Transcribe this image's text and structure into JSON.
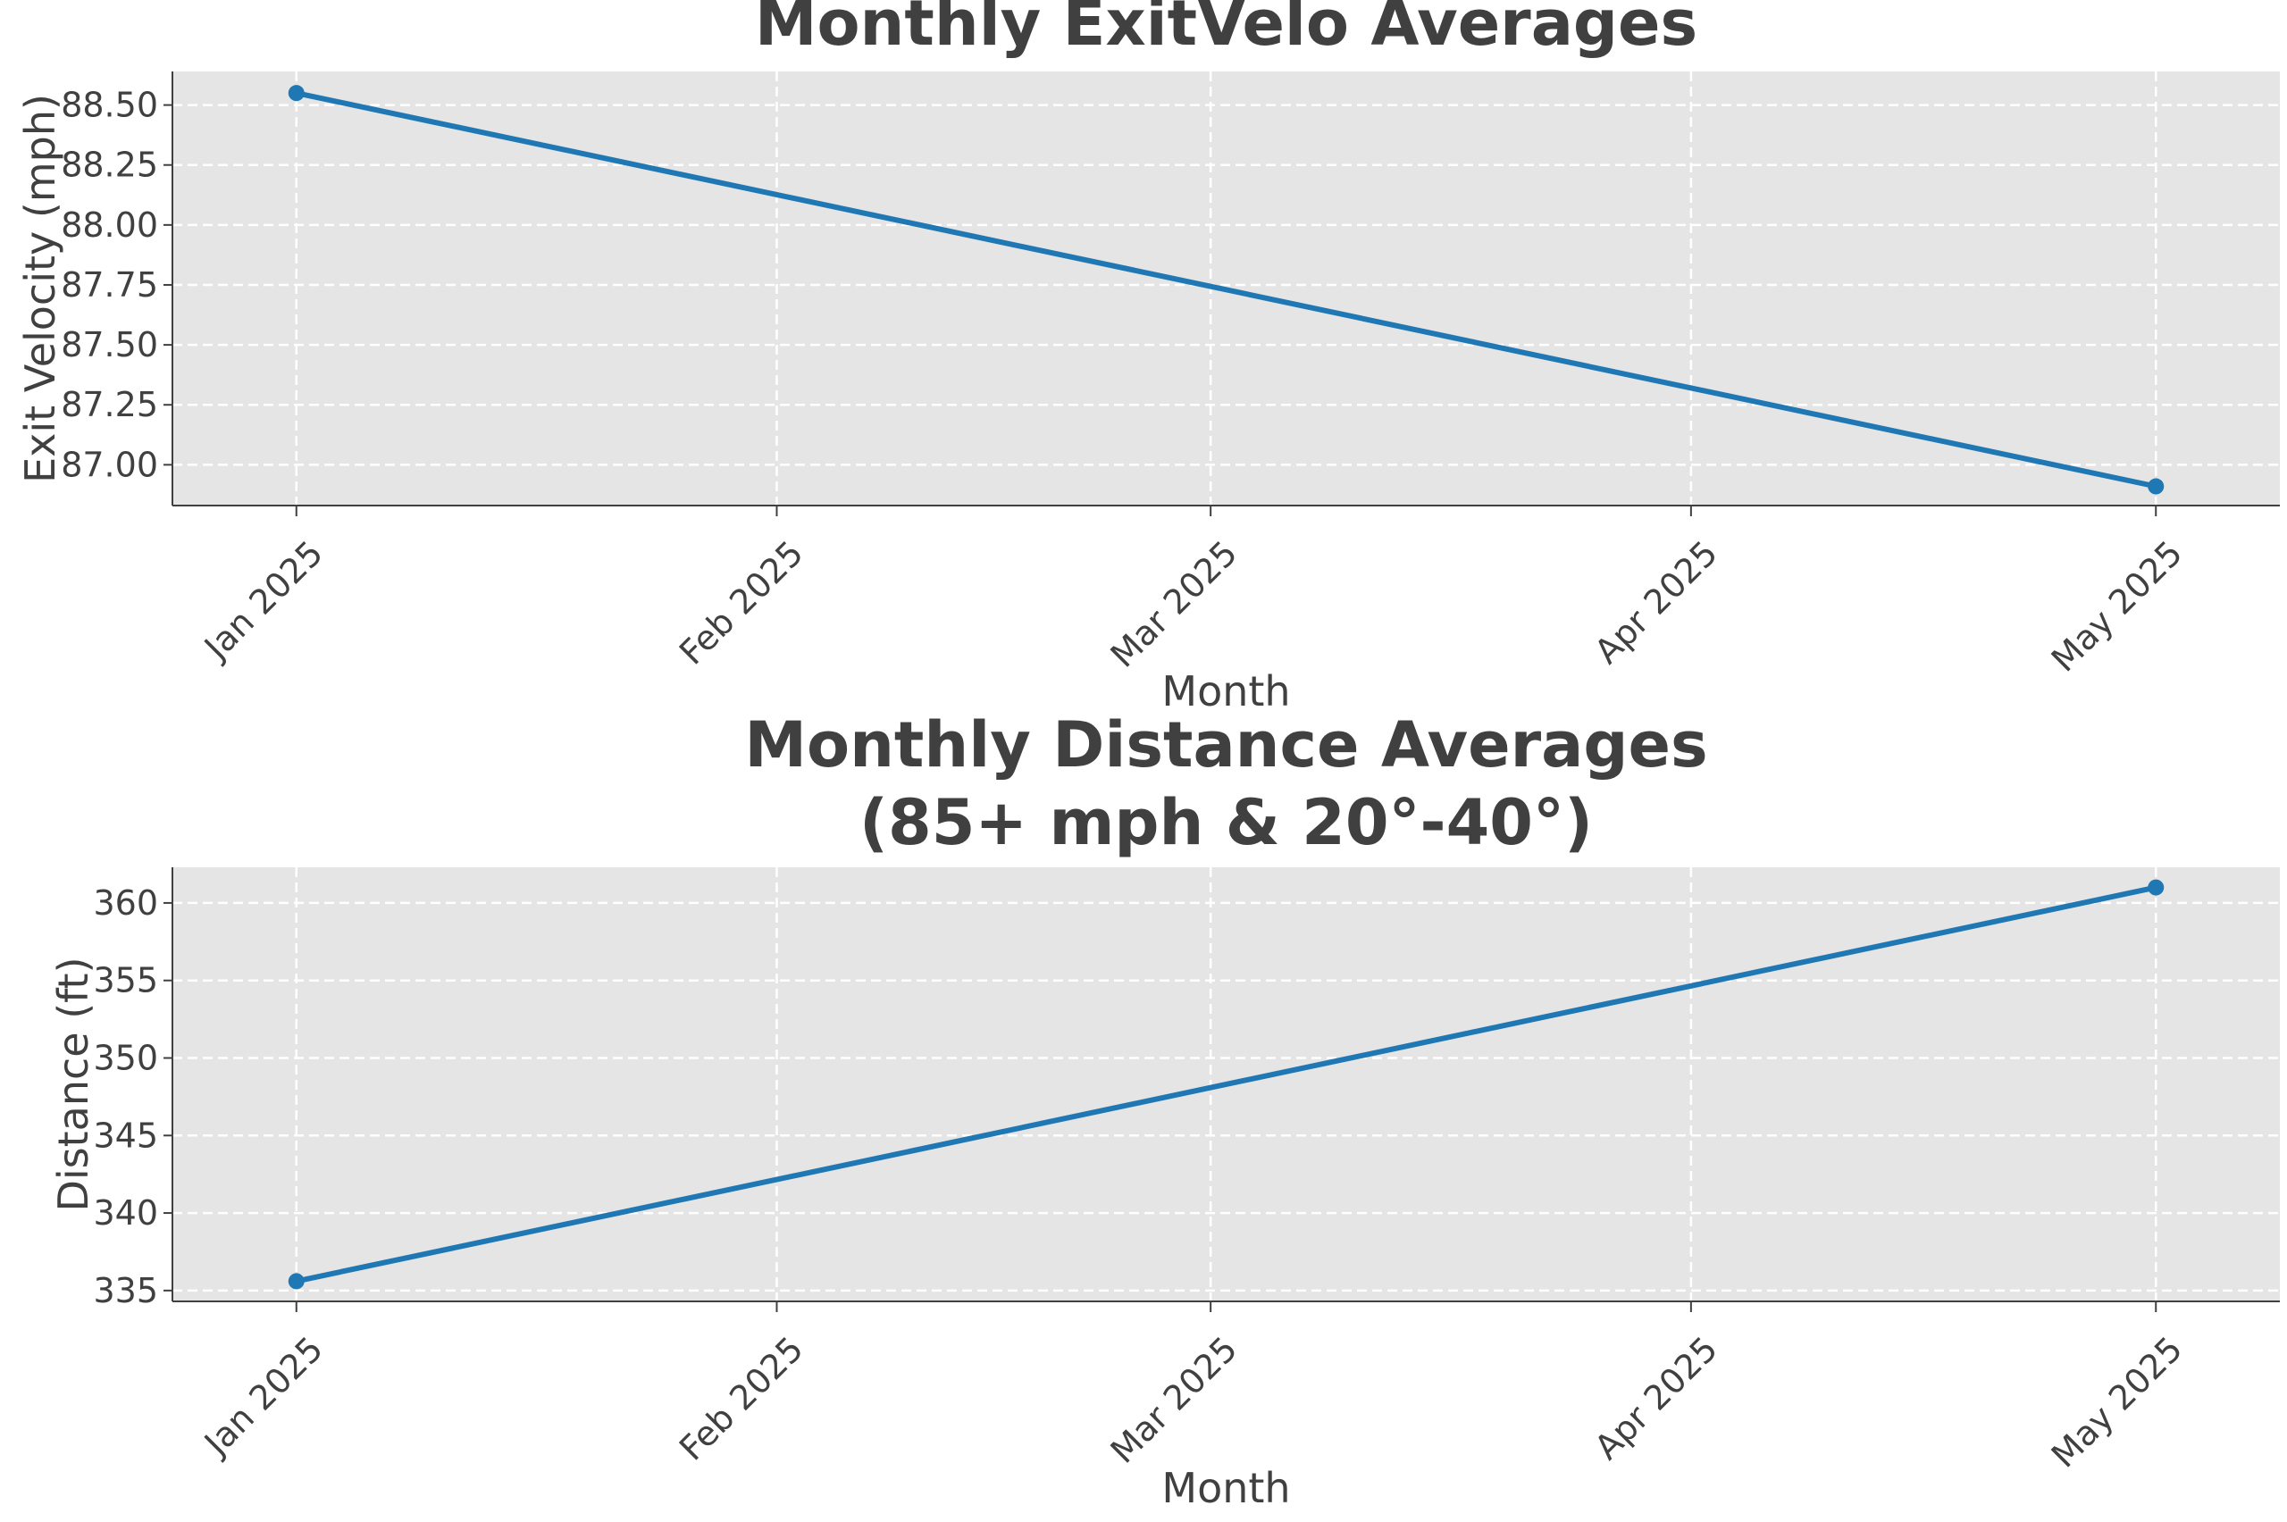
{
  "colors": {
    "series": "#1f77b4",
    "panel_background": "#e5e5e5",
    "grid": "#ffffff",
    "text": "#404040"
  },
  "chart_data": [
    {
      "type": "line",
      "title": "Monthly ExitVelo Averages",
      "xlabel": "Month",
      "ylabel": "Exit Velocity (mph)",
      "x_ticks": [
        {
          "date": "2025-01-01",
          "label": "Jan 2025"
        },
        {
          "date": "2025-02-01",
          "label": "Feb 2025"
        },
        {
          "date": "2025-03-01",
          "label": "Mar 2025"
        },
        {
          "date": "2025-04-01",
          "label": "Apr 2025"
        },
        {
          "date": "2025-05-01",
          "label": "May 2025"
        }
      ],
      "xlim": [
        "2024-12-24",
        "2025-05-09"
      ],
      "y_ticks": [
        87.0,
        87.25,
        87.5,
        87.75,
        88.0,
        88.25,
        88.5
      ],
      "y_tick_labels": [
        "87.00",
        "87.25",
        "87.50",
        "87.75",
        "88.00",
        "88.25",
        "88.50"
      ],
      "ylim": [
        86.83,
        88.64
      ],
      "grid": true,
      "series": [
        {
          "points": [
            {
              "x": "2025-01-01",
              "y": 88.55
            },
            {
              "x": "2025-05-01",
              "y": 86.91
            }
          ]
        }
      ]
    },
    {
      "type": "line",
      "title": "Monthly Distance Averages\n(85+ mph & 20°-40°)",
      "xlabel": "Month",
      "ylabel": "Distance (ft)",
      "x_ticks": [
        {
          "date": "2025-01-01",
          "label": "Jan 2025"
        },
        {
          "date": "2025-02-01",
          "label": "Feb 2025"
        },
        {
          "date": "2025-03-01",
          "label": "Mar 2025"
        },
        {
          "date": "2025-04-01",
          "label": "Apr 2025"
        },
        {
          "date": "2025-05-01",
          "label": "May 2025"
        }
      ],
      "xlim": [
        "2024-12-24",
        "2025-05-09"
      ],
      "y_ticks": [
        335,
        340,
        345,
        350,
        355,
        360
      ],
      "y_tick_labels": [
        "335",
        "340",
        "345",
        "350",
        "355",
        "360"
      ],
      "ylim": [
        334.3,
        362.3
      ],
      "grid": true,
      "series": [
        {
          "points": [
            {
              "x": "2025-01-01",
              "y": 335.6
            },
            {
              "x": "2025-05-01",
              "y": 361.0
            }
          ]
        }
      ]
    }
  ]
}
